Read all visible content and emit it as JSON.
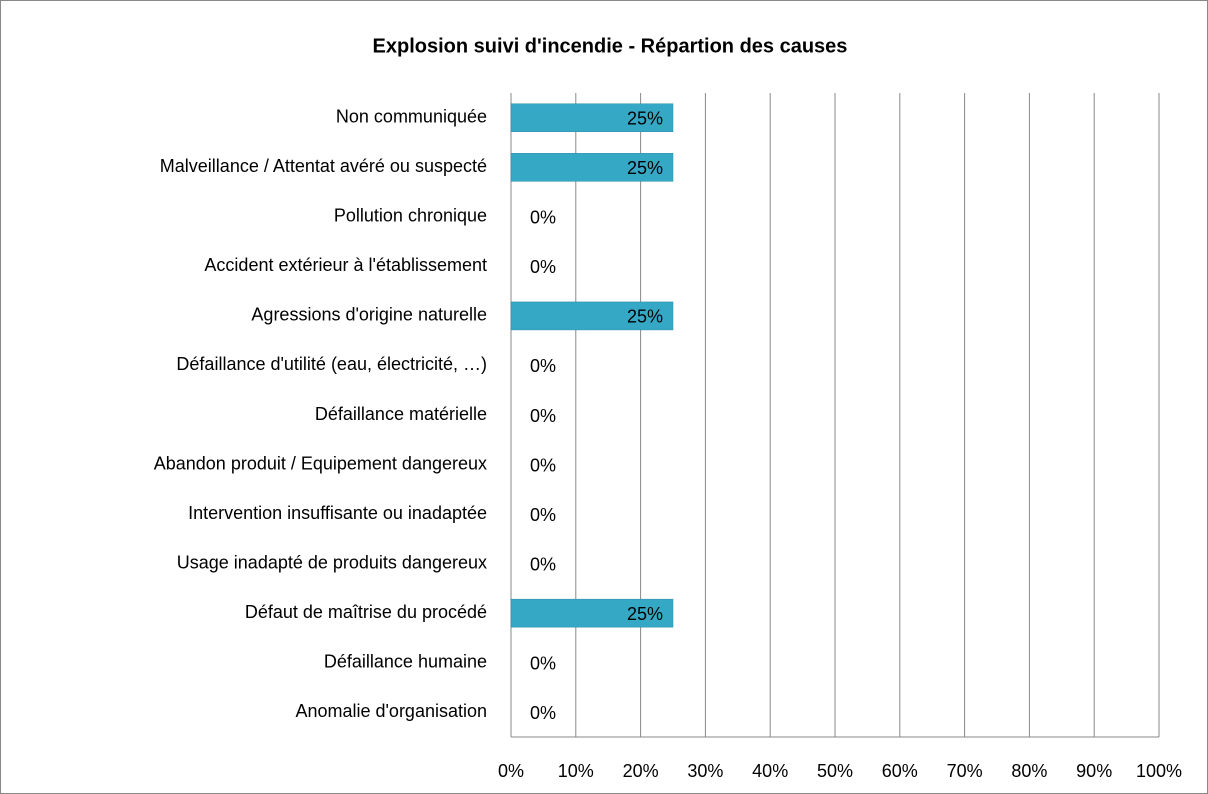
{
  "chart_data": {
    "type": "barh",
    "title": "Explosion suivi d'incendie - Répartion des causes",
    "categories": [
      "Non communiquée",
      "Malveillance / Attentat avéré ou suspecté",
      "Pollution chronique",
      "Accident extérieur à l'établissement",
      "Agressions d'origine naturelle",
      "Défaillance d'utilité (eau, électricité, …)",
      "Défaillance matérielle",
      "Abandon produit / Equipement dangereux",
      "Intervention insuffisante ou inadaptée",
      "Usage inadapté de produits dangereux",
      "Défaut de maîtrise du procédé",
      "Défaillance humaine",
      "Anomalie d'organisation"
    ],
    "values": [
      25,
      25,
      0,
      0,
      25,
      0,
      0,
      0,
      0,
      0,
      25,
      0,
      0
    ],
    "value_labels": [
      "25%",
      "25%",
      "0%",
      "0%",
      "25%",
      "0%",
      "0%",
      "0%",
      "0%",
      "0%",
      "25%",
      "0%",
      "0%"
    ],
    "color": "#35a8c6",
    "xlim": [
      0,
      100
    ],
    "xticks": [
      {
        "value": 0,
        "label": "0%"
      },
      {
        "value": 10,
        "label": "10%"
      },
      {
        "value": 20,
        "label": "20%"
      },
      {
        "value": 30,
        "label": "30%"
      },
      {
        "value": 40,
        "label": "40%"
      },
      {
        "value": 50,
        "label": "50%"
      },
      {
        "value": 60,
        "label": "60%"
      },
      {
        "value": 70,
        "label": "70%"
      },
      {
        "value": 80,
        "label": "80%"
      },
      {
        "value": 90,
        "label": "90%"
      },
      {
        "value": 100,
        "label": "100%"
      }
    ],
    "grid": true
  }
}
